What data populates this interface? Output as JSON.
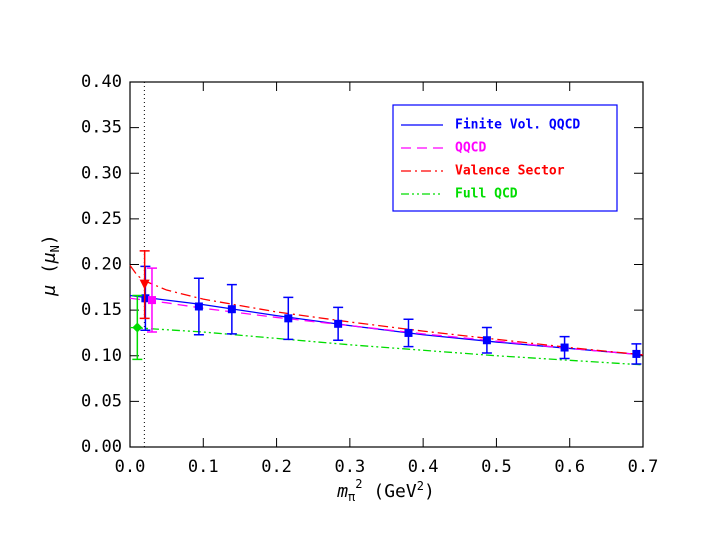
{
  "chart_data": {
    "type": "line",
    "x_label": [
      "m",
      "π",
      "2",
      " (GeV",
      "2",
      ")"
    ],
    "y_label": [
      "μ",
      " (",
      "μ",
      "N",
      ")"
    ],
    "xlim": [
      0,
      0.7
    ],
    "ylim": [
      0,
      0.4
    ],
    "xticks": [
      {
        "value": 0,
        "label": "0.0"
      },
      0.1,
      0.2,
      0.3,
      0.4,
      0.5,
      0.6,
      0.7
    ],
    "yticks": [
      {
        "value": 0,
        "label": "0.00"
      },
      0.05,
      {
        "value": 0.1,
        "label": "0.10"
      },
      0.15,
      {
        "value": 0.2,
        "label": "0.20"
      },
      0.25,
      {
        "value": 0.3,
        "label": "0.30"
      },
      0.35,
      {
        "value": 0.4,
        "label": "0.40"
      }
    ],
    "vline": 0.0196,
    "legend": "upper right",
    "series": [
      {
        "name": "Finite Vol. QQCD",
        "color": "#0000ff",
        "style": "solid",
        "x": [
          0,
          0.02,
          0.05,
          0.1,
          0.2,
          0.3,
          0.4,
          0.5,
          0.6,
          0.7
        ],
        "values": [
          0.166,
          0.164,
          0.161,
          0.156,
          0.144,
          0.133,
          0.123,
          0.115,
          0.108,
          0.101
        ]
      },
      {
        "name": "QQCD",
        "color": "#ff00ff",
        "style": "dashed",
        "x": [
          0,
          0.02,
          0.05,
          0.1,
          0.2,
          0.3,
          0.4,
          0.5,
          0.6,
          0.7
        ],
        "values": [
          0.163,
          0.161,
          0.158,
          0.152,
          0.142,
          0.133,
          0.124,
          0.116,
          0.108,
          0.101
        ]
      },
      {
        "name": "Valence Sector",
        "color": "#ff0000",
        "style": "dashdot",
        "x": [
          0,
          0.01,
          0.02,
          0.05,
          0.1,
          0.2,
          0.3,
          0.4,
          0.5,
          0.6,
          0.7
        ],
        "values": [
          0.199,
          0.188,
          0.182,
          0.172,
          0.162,
          0.148,
          0.137,
          0.127,
          0.118,
          0.109,
          0.101
        ]
      },
      {
        "name": "Full QCD",
        "color": "#00dd00",
        "style": "dashdotdot",
        "x": [
          0,
          0.1,
          0.2,
          0.3,
          0.4,
          0.5,
          0.6,
          0.7
        ],
        "values": [
          0.131,
          0.126,
          0.119,
          0.112,
          0.106,
          0.1,
          0.095,
          0.09
        ]
      }
    ],
    "points": [
      {
        "color": "#0000ff",
        "marker": "square",
        "x": [
          0.021,
          0.094,
          0.139,
          0.216,
          0.284,
          0.38,
          0.487,
          0.593,
          0.691
        ],
        "values": [
          0.163,
          0.154,
          0.151,
          0.141,
          0.135,
          0.125,
          0.117,
          0.109,
          0.102
        ],
        "errors": [
          0.035,
          0.031,
          0.027,
          0.023,
          0.018,
          0.015,
          0.014,
          0.012,
          0.011
        ]
      },
      {
        "color": "#ff00ff",
        "marker": "square",
        "x": [
          0.03
        ],
        "values": [
          0.161
        ],
        "errors": [
          0.035
        ]
      },
      {
        "color": "#ff0000",
        "marker": "triangle",
        "x": [
          0.02
        ],
        "values": [
          0.178
        ],
        "errors": [
          0.037
        ]
      },
      {
        "color": "#00dd00",
        "marker": "diamond",
        "x": [
          0.01
        ],
        "values": [
          0.131
        ],
        "errors": [
          0.035
        ]
      }
    ]
  }
}
